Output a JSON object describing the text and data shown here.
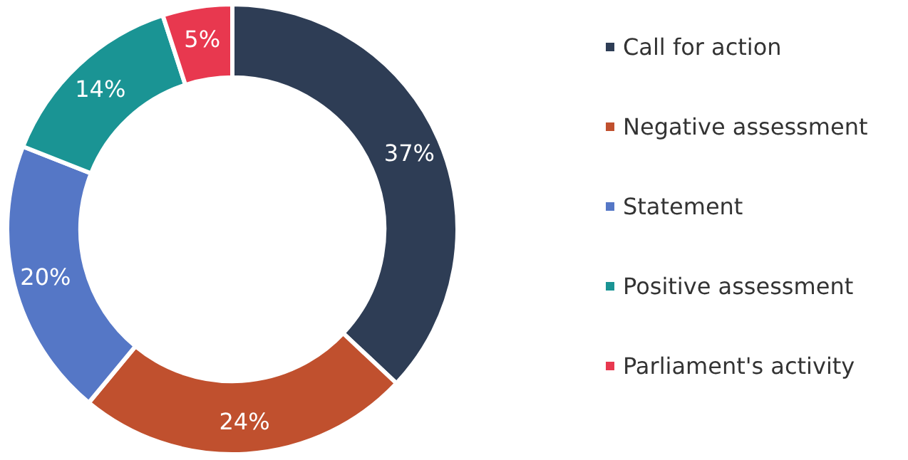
{
  "chart_data": {
    "type": "donut",
    "categories": [
      "Call for action",
      "Negative assessment",
      "Statement",
      "Positive assessment",
      "Parliament's activity"
    ],
    "values": [
      37,
      24,
      20,
      14,
      5
    ],
    "colors": [
      "#2e3d55",
      "#c0502e",
      "#5577c6",
      "#1a9494",
      "#e8384f"
    ],
    "value_labels": [
      "37%",
      "24%",
      "20%",
      "14%",
      "5%"
    ],
    "legend": "right"
  }
}
